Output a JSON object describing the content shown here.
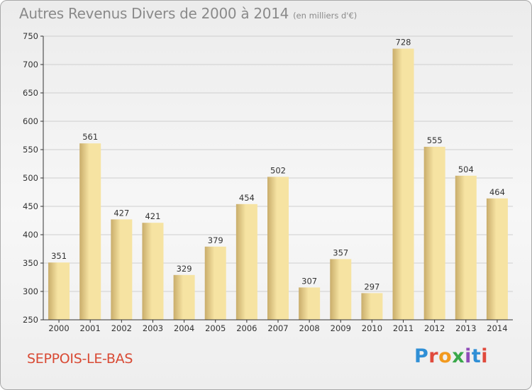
{
  "title": "Autres Revenus Divers de 2000 à 2014",
  "subtitle": "(en milliers d'€)",
  "commune": "SEPPOIS-LE-BAS",
  "logo": {
    "letters": [
      "P",
      "r",
      "o",
      "x",
      "i",
      "t",
      "i"
    ],
    "colors": [
      "#2f8fd6",
      "#e04a3c",
      "#f29a1f",
      "#3aa84a",
      "#8f4cb8",
      "#2f8fd6",
      "#e04a3c"
    ]
  },
  "colors": {
    "bar_light": "#f6e3a2",
    "bar_dark": "#c9ad6b",
    "axis": "#333333",
    "grid": "#cfcfcf"
  },
  "chart_data": {
    "type": "bar",
    "categories": [
      "2000",
      "2001",
      "2002",
      "2003",
      "2004",
      "2005",
      "2006",
      "2007",
      "2008",
      "2009",
      "2010",
      "2011",
      "2012",
      "2013",
      "2014"
    ],
    "values": [
      351,
      561,
      427,
      421,
      329,
      379,
      454,
      502,
      307,
      357,
      297,
      728,
      555,
      504,
      464
    ],
    "yticks": [
      250,
      300,
      350,
      400,
      450,
      500,
      550,
      600,
      650,
      700,
      750
    ],
    "ylim": [
      250,
      750
    ],
    "grid": "horizontal",
    "xlabel": "",
    "ylabel": ""
  }
}
